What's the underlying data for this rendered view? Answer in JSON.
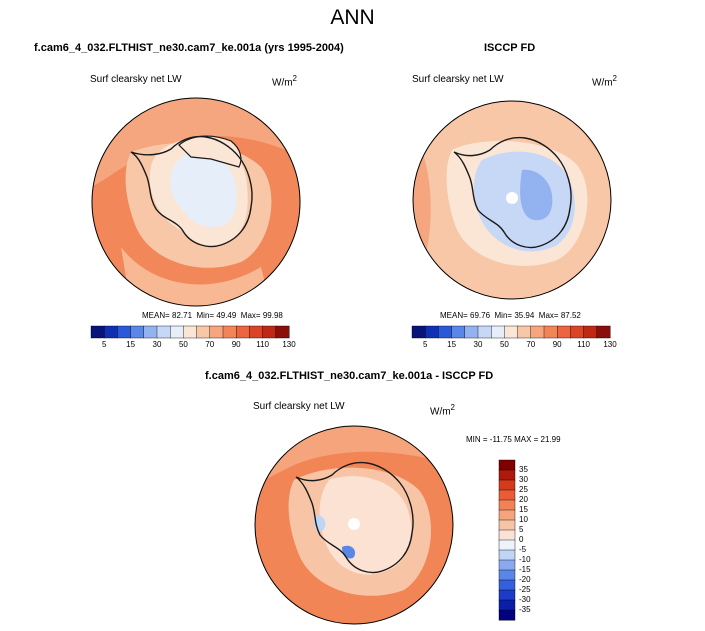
{
  "title": "ANN",
  "panels": [
    {
      "title": "f.cam6_4_032.FLTHIST_ne30.cam7_ke.001a (yrs 1995-2004)",
      "variable": "Surf clearsky net LW",
      "units_base": "W/m",
      "units_exp": "2",
      "stats": {
        "mean_label": "MEAN=",
        "mean": "82.71",
        "min_label": "Min=",
        "min": "49.49",
        "max_label": "Max=",
        "max": "99.98"
      }
    },
    {
      "title": "ISCCP FD",
      "variable": "Surf clearsky net LW",
      "units_base": "W/m",
      "units_exp": "2",
      "stats": {
        "mean_label": "MEAN=",
        "mean": "69.76",
        "min_label": "Min=",
        "min": "35.94",
        "max_label": "Max=",
        "max": "87.52"
      }
    },
    {
      "title": "f.cam6_4_032.FLTHIST_ne30.cam7_ke.001a - ISCCP FD",
      "variable": "Surf clearsky net LW",
      "units_base": "W/m",
      "units_exp": "2",
      "stats_text": "MIN = -11.75 MAX =  21.99"
    }
  ],
  "chart_data": [
    {
      "type": "heatmap",
      "projection": "south-polar-stereographic",
      "title": "f.cam6_4_032.FLTHIST_ne30.cam7_ke.001a (yrs 1995-2004)",
      "variable": "Surf clearsky net LW",
      "units": "W/m^2",
      "mean": 82.71,
      "min": 49.49,
      "max": 99.98,
      "colorbar_levels": [
        5,
        10,
        15,
        20,
        30,
        40,
        50,
        60,
        70,
        80,
        90,
        100,
        110,
        120,
        130
      ],
      "colorbar_tick_labels": [
        "5",
        "15",
        "30",
        "50",
        "70",
        "90",
        "110",
        "130"
      ]
    },
    {
      "type": "heatmap",
      "projection": "south-polar-stereographic",
      "title": "ISCCP FD",
      "variable": "Surf clearsky net LW",
      "units": "W/m^2",
      "mean": 69.76,
      "min": 35.94,
      "max": 87.52,
      "colorbar_levels": [
        5,
        10,
        15,
        20,
        30,
        40,
        50,
        60,
        70,
        80,
        90,
        100,
        110,
        120,
        130
      ],
      "colorbar_tick_labels": [
        "5",
        "15",
        "30",
        "50",
        "70",
        "90",
        "110",
        "130"
      ]
    },
    {
      "type": "heatmap",
      "projection": "south-polar-stereographic",
      "title": "f.cam6_4_032.FLTHIST_ne30.cam7_ke.001a - ISCCP FD",
      "variable": "Surf clearsky net LW",
      "units": "W/m^2",
      "min": -11.75,
      "max": 21.99,
      "colorbar_levels": [
        -35,
        -30,
        -25,
        -20,
        -15,
        -10,
        -5,
        0,
        5,
        10,
        15,
        20,
        25,
        30,
        35
      ],
      "colorbar_tick_labels": [
        "35",
        "30",
        "25",
        "20",
        "15",
        "10",
        "5",
        "0",
        "-5",
        "-10",
        "-15",
        "-20",
        "-25",
        "-30",
        "-35"
      ]
    }
  ],
  "colors": {
    "seq_palette": [
      "#08147a",
      "#1030b4",
      "#2a58d8",
      "#5a86e8",
      "#93b3f0",
      "#c6d8f6",
      "#e6eefa",
      "#fbe6d6",
      "#f8c7a8",
      "#f5a67e",
      "#f28558",
      "#ec6540",
      "#dc4428",
      "#c02814",
      "#8a0e0a"
    ],
    "diff_palette": [
      "#000080",
      "#0a1ea8",
      "#1a3cc8",
      "#3360dc",
      "#5a86e8",
      "#8aaaf0",
      "#c0d4f6",
      "#eef2fa",
      "#fbe2d2",
      "#f8c4a6",
      "#f5a47c",
      "#f28256",
      "#ea5c36",
      "#d43a1c",
      "#b0180c",
      "#800000"
    ]
  }
}
